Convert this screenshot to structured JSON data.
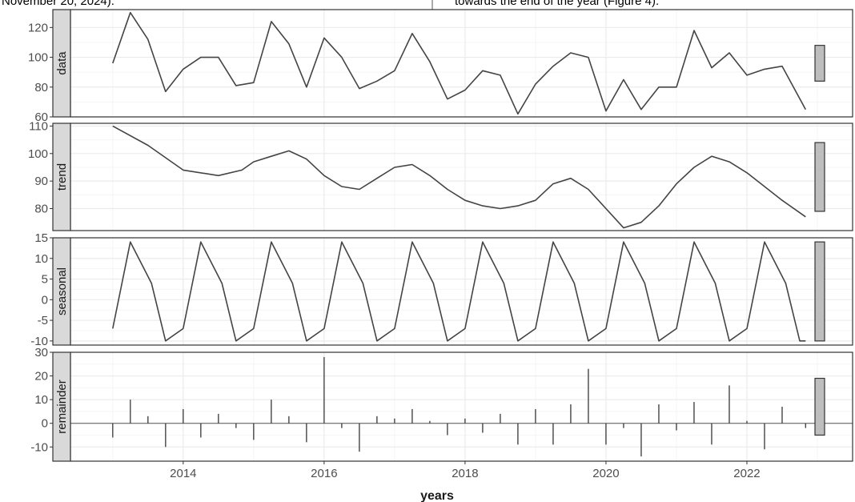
{
  "caption_left": "November 20, 2024).",
  "caption_right": "towards the end of the year (Figure 4).",
  "chart_data": {
    "type": "line",
    "title": "",
    "xlabel": "years",
    "x_range": [
      2013.0,
      2022.8333
    ],
    "x_ticks": [
      "2014",
      "2016",
      "2018",
      "2020",
      "2022"
    ],
    "x_tick_values": [
      2014,
      2016,
      2018,
      2020,
      2022
    ],
    "grid": true,
    "panels": [
      {
        "name": "data",
        "kind": "line",
        "ylim": [
          60,
          132
        ],
        "y_ticks": [
          60,
          80,
          100,
          120
        ],
        "scale_bar": [
          84,
          108
        ],
        "x": [
          2013.0,
          2013.25,
          2013.5,
          2013.75,
          2014.0,
          2014.25,
          2014.5,
          2014.75,
          2015.0,
          2015.25,
          2015.5,
          2015.75,
          2016.0,
          2016.25,
          2016.5,
          2016.75,
          2017.0,
          2017.25,
          2017.5,
          2017.75,
          2018.0,
          2018.25,
          2018.5,
          2018.75,
          2019.0,
          2019.25,
          2019.5,
          2019.75,
          2020.0,
          2020.25,
          2020.5,
          2020.75,
          2021.0,
          2021.25,
          2021.5,
          2021.75,
          2022.0,
          2022.25,
          2022.5,
          2022.8333
        ],
        "values": [
          96,
          130,
          112,
          77,
          92,
          100,
          100,
          81,
          83,
          124,
          109,
          80,
          113,
          100,
          79,
          84,
          91,
          116,
          97,
          72,
          78,
          91,
          88,
          62,
          82,
          94,
          103,
          100,
          64,
          85,
          65,
          80,
          80,
          118,
          93,
          103,
          88,
          92,
          94,
          65
        ]
      },
      {
        "name": "trend",
        "kind": "line",
        "ylim": [
          72,
          111
        ],
        "y_ticks": [
          80,
          90,
          100,
          110
        ],
        "scale_bar": [
          79,
          104
        ],
        "x": [
          2013.0,
          2013.5,
          2014.0,
          2014.5,
          2014.8333,
          2015.0,
          2015.25,
          2015.5,
          2015.75,
          2016.0,
          2016.25,
          2016.5,
          2016.75,
          2017.0,
          2017.25,
          2017.5,
          2017.75,
          2018.0,
          2018.25,
          2018.5,
          2018.75,
          2019.0,
          2019.25,
          2019.5,
          2019.75,
          2020.0,
          2020.25,
          2020.5,
          2020.75,
          2021.0,
          2021.25,
          2021.5,
          2021.75,
          2022.0,
          2022.25,
          2022.5,
          2022.8333
        ],
        "values": [
          110,
          103,
          94,
          92,
          94,
          97,
          99,
          101,
          98,
          92,
          88,
          87,
          91,
          95,
          96,
          92,
          87,
          83,
          81,
          80,
          81,
          83,
          89,
          91,
          87,
          80,
          73,
          75,
          81,
          89,
          95,
          99,
          97,
          93,
          88,
          83,
          77
        ]
      },
      {
        "name": "seasonal",
        "kind": "line",
        "ylim": [
          -11,
          15
        ],
        "y_ticks": [
          -10,
          -5,
          0,
          5,
          10,
          15
        ],
        "scale_bar": [
          -10,
          14
        ],
        "pattern": {
          "start_year": 2013,
          "years": 10,
          "trough": -7,
          "peak": 14,
          "mid_fall": 4,
          "low": -10
        }
      },
      {
        "name": "remainder",
        "kind": "bars",
        "ylim": [
          -16,
          30
        ],
        "y_ticks": [
          -10,
          0,
          10,
          20,
          30
        ],
        "scale_bar": [
          -5,
          19
        ],
        "x": [
          2013.0,
          2013.25,
          2013.5,
          2013.75,
          2014.0,
          2014.25,
          2014.5,
          2014.75,
          2015.0,
          2015.25,
          2015.5,
          2015.75,
          2016.0,
          2016.25,
          2016.5,
          2016.75,
          2017.0,
          2017.25,
          2017.5,
          2017.75,
          2018.0,
          2018.25,
          2018.5,
          2018.75,
          2019.0,
          2019.25,
          2019.5,
          2019.75,
          2020.0,
          2020.25,
          2020.5,
          2020.75,
          2021.0,
          2021.25,
          2021.5,
          2021.75,
          2022.0,
          2022.25,
          2022.5,
          2022.8333
        ],
        "values": [
          -6,
          10,
          3,
          -10,
          6,
          -6,
          4,
          -2,
          -7,
          10,
          3,
          -8,
          28,
          -2,
          -12,
          3,
          2,
          6,
          1,
          -5,
          2,
          -4,
          4,
          -9,
          6,
          -9,
          8,
          23,
          -9,
          -2,
          -14,
          8,
          -3,
          9,
          -9,
          16,
          1,
          -11,
          7,
          -2
        ]
      }
    ]
  },
  "colors": {
    "panel_bg": "#ffffff",
    "grid_major": "#ebebeb",
    "grid_minor": "#f5f5f5",
    "strip_bg": "#d9d9d9",
    "border": "#333333",
    "line": "#444444",
    "scale_bar_fill": "#bebebe"
  }
}
